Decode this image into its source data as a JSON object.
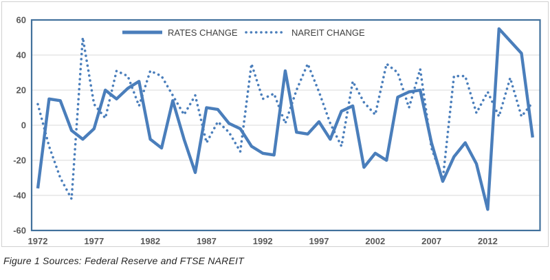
{
  "figure": {
    "caption": "Figure 1 Sources: Federal Reserve and FTSE NAREIT"
  },
  "colors": {
    "series_blue": "#4a7ebb",
    "plot_border_blue": "#41719c",
    "gridline_gray": "#d9d9d9",
    "outer_border_gray": "#d0d0d0",
    "tick_text_gray": "#595959",
    "legend_text_gray": "#3f3f3f",
    "caption_text": "#262626"
  },
  "chart_data": {
    "type": "line",
    "title": "",
    "xlabel": "",
    "ylabel": "",
    "x": [
      1972,
      1973,
      1974,
      1975,
      1976,
      1977,
      1978,
      1979,
      1980,
      1981,
      1982,
      1983,
      1984,
      1985,
      1986,
      1987,
      1988,
      1989,
      1990,
      1991,
      1992,
      1993,
      1994,
      1995,
      1996,
      1997,
      1998,
      1999,
      2000,
      2001,
      2002,
      2003,
      2004,
      2005,
      2006,
      2007,
      2008,
      2009,
      2010,
      2011,
      2012,
      2013,
      2014,
      2015,
      2016
    ],
    "series": [
      {
        "name": "RATES CHANGE",
        "style": "solid",
        "values": [
          -36,
          15,
          14,
          -3,
          -8,
          -2,
          20,
          15,
          21,
          25,
          -8,
          -13,
          14,
          -8,
          -27,
          10,
          9,
          1,
          -2,
          -12,
          -16,
          -17,
          31,
          -4,
          -5,
          2,
          -8,
          8,
          11,
          -24,
          -16,
          -20,
          16,
          19,
          20,
          -10,
          -32,
          -18,
          -10,
          -22,
          -48,
          55,
          48,
          41,
          -7
        ]
      },
      {
        "name": "NAREIT CHANGE",
        "style": "dotted",
        "values": [
          12,
          -12,
          -30,
          -42,
          50,
          12,
          4,
          31,
          28,
          11,
          31,
          28,
          17,
          6,
          17,
          -10,
          2,
          -4,
          -15,
          35,
          15,
          18,
          1,
          20,
          35,
          19,
          1,
          -12,
          25,
          13,
          6,
          35,
          30,
          10,
          32,
          -13,
          -31,
          28,
          28,
          7,
          19,
          5,
          27,
          5,
          13
        ]
      }
    ],
    "ylim": [
      -60,
      60
    ],
    "yticks": [
      60,
      40,
      20,
      0,
      -20,
      -40,
      -60
    ],
    "gridline_values": [
      40,
      20,
      0,
      -20,
      -40
    ],
    "xticks_shown": [
      1972,
      1977,
      1982,
      1987,
      1992,
      1997,
      2002,
      2007,
      2012
    ],
    "grid": true,
    "legend_position": "top-center-inside"
  }
}
